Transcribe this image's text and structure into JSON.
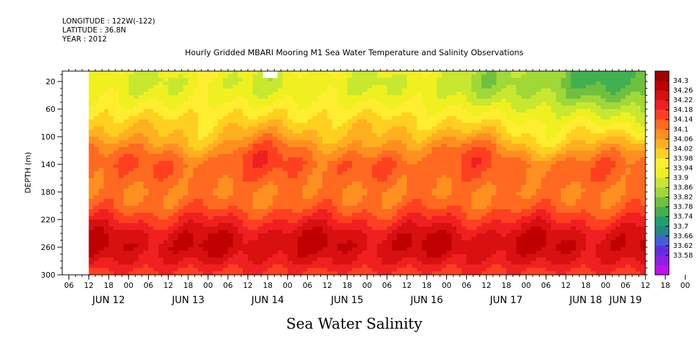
{
  "header": {
    "longitude": "LONGITUDE : 122W(-122)",
    "latitude": "LATITUDE : 36.8N",
    "year": "YEAR : 2012"
  },
  "footer": {
    "caption": "Sea Water Salinity"
  },
  "chart_data": {
    "type": "heatmap",
    "title": "Hourly Gridded MBARI Mooring M1 Sea Water Temperature and Salinity Observations",
    "ylabel": "DEPTH (m)",
    "xlabel": "",
    "x_hour_ticks": [
      "06",
      "12",
      "18",
      "00",
      "06",
      "12",
      "18",
      "00",
      "06",
      "12",
      "18",
      "00",
      "06",
      "12",
      "18",
      "00",
      "06",
      "12",
      "18",
      "00",
      "06",
      "12",
      "18",
      "00",
      "06",
      "12",
      "18",
      "00",
      "06",
      "12",
      "18",
      "00"
    ],
    "x_day_labels": [
      {
        "label": "JUN 12",
        "hour": 12
      },
      {
        "label": "JUN 13",
        "hour": 36
      },
      {
        "label": "JUN 14",
        "hour": 60
      },
      {
        "label": "JUN 15",
        "hour": 84
      },
      {
        "label": "JUN 16",
        "hour": 108
      },
      {
        "label": "JUN 17",
        "hour": 132
      },
      {
        "label": "JUN 18",
        "hour": 156
      },
      {
        "label": "JUN 19",
        "hour": 168
      }
    ],
    "xlim_hours": [
      -2,
      174
    ],
    "data_start_hour": 6,
    "y_ticks": [
      20,
      60,
      100,
      140,
      180,
      220,
      260,
      300
    ],
    "ylim": [
      5,
      300
    ],
    "y_inverted": true,
    "colorbar": {
      "levels": [
        "34.3",
        "34.26",
        "34.22",
        "34.18",
        "34.14",
        "34.1",
        "34.06",
        "34.02",
        "33.98",
        "33.94",
        "33.9",
        "33.86",
        "33.82",
        "33.78",
        "33.74",
        "33.7",
        "33.66",
        "33.62",
        "33.58"
      ],
      "colors": [
        "#a00000",
        "#c00000",
        "#d81010",
        "#f02020",
        "#ff4020",
        "#ff6a20",
        "#ff9020",
        "#ffb020",
        "#ffd020",
        "#ffee30",
        "#f0f020",
        "#c8e830",
        "#a0d838",
        "#70c040",
        "#40b050",
        "#20a070",
        "#208888",
        "#4060d8",
        "#6030e0",
        "#9020e8",
        "#c010f0"
      ]
    },
    "profile_depths": [
      5,
      20,
      40,
      60,
      80,
      100,
      120,
      140,
      160,
      180,
      200,
      220,
      240,
      260,
      280,
      300
    ],
    "profile_salinity": [
      33.92,
      33.9,
      33.92,
      33.96,
      34.0,
      34.04,
      34.1,
      34.14,
      34.12,
      34.1,
      34.12,
      34.18,
      34.24,
      34.26,
      34.22,
      34.16
    ],
    "missing": [
      {
        "hour_start": 59,
        "hour_end": 63,
        "depth_start": 5,
        "depth_end": 15
      }
    ]
  }
}
